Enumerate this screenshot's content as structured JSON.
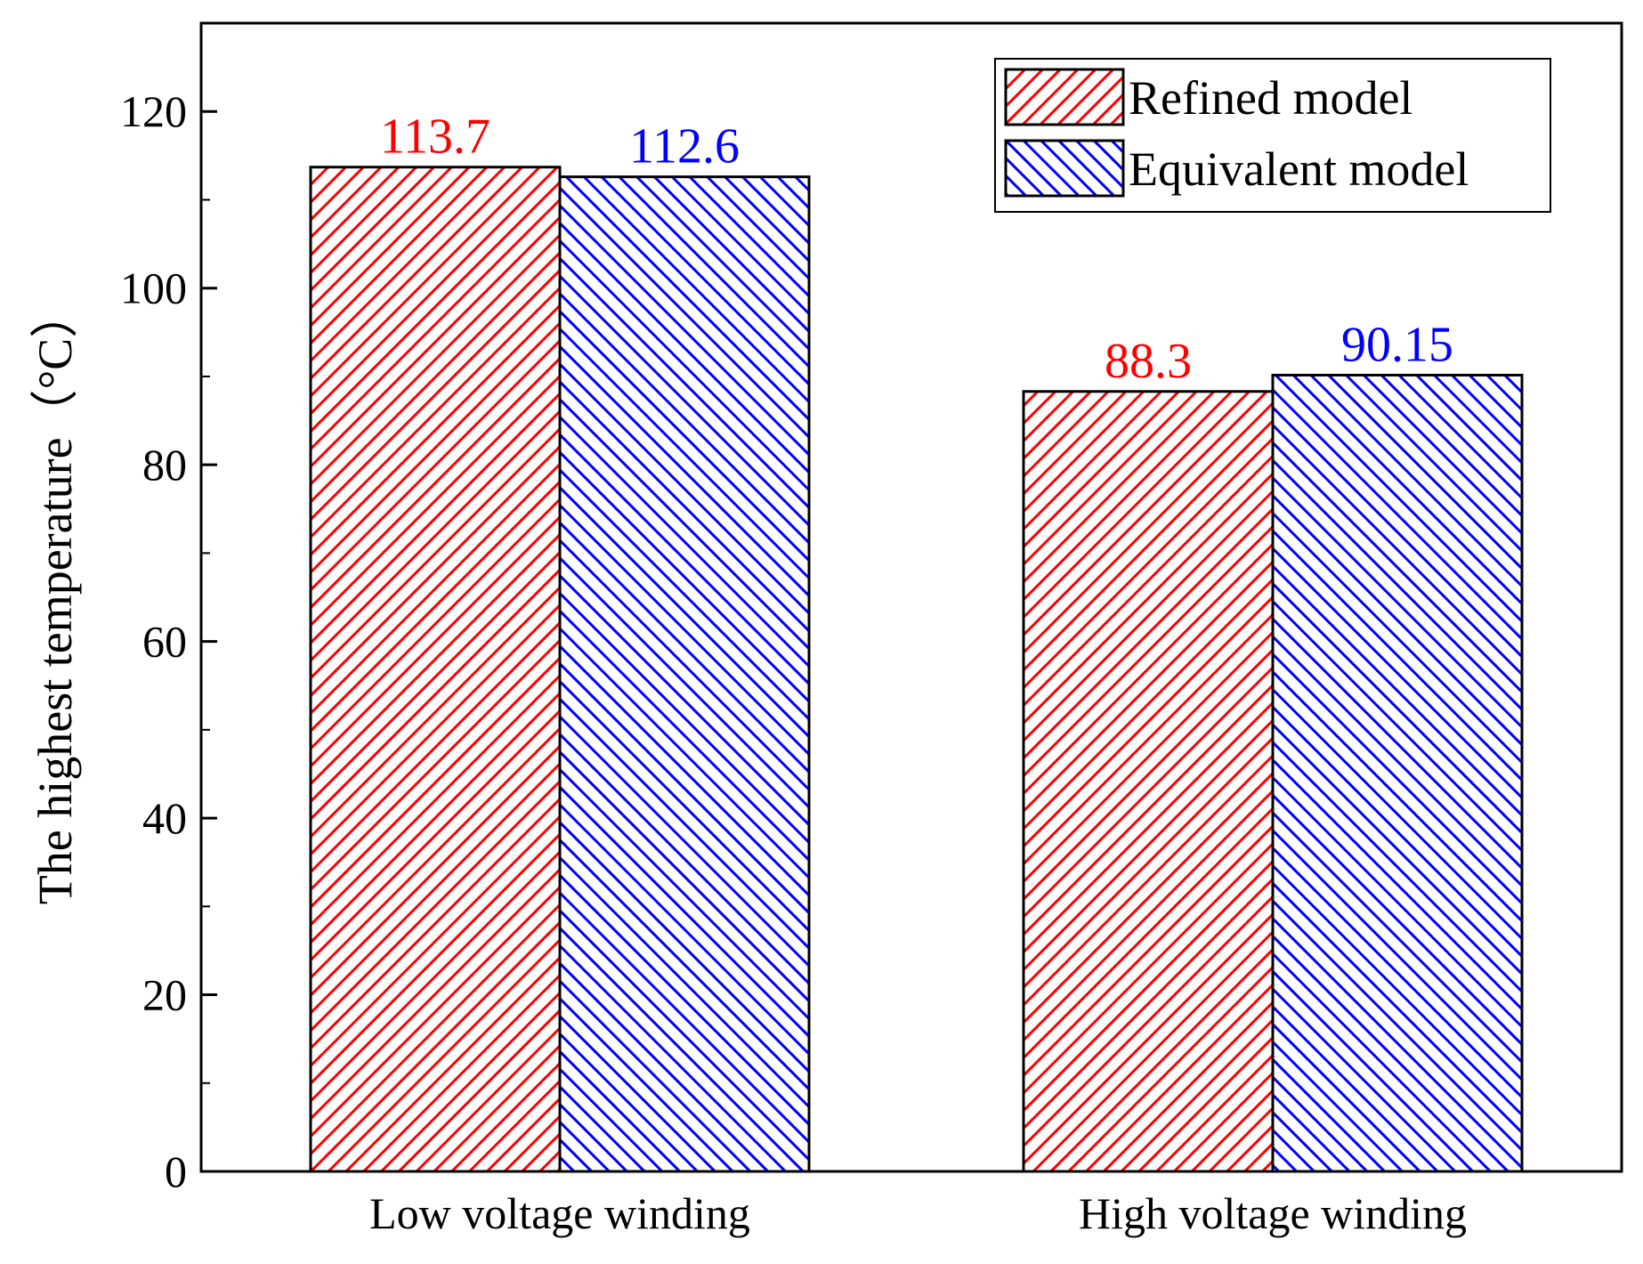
{
  "chart_data": {
    "type": "bar",
    "title": "",
    "xlabel": "",
    "ylabel": "The highest temperature（°C）",
    "categories": [
      "Low voltage winding",
      "High voltage winding"
    ],
    "series": [
      {
        "name": "Refined model",
        "values": [
          113.7,
          88.3
        ],
        "value_labels": [
          "113.7",
          "88.3"
        ],
        "color": "#ff0000",
        "hatch": "forward-diagonal"
      },
      {
        "name": "Equivalent model",
        "values": [
          112.6,
          90.15
        ],
        "value_labels": [
          "112.6",
          "90.15"
        ],
        "color": "#0000ff",
        "hatch": "back-diagonal"
      }
    ],
    "ylim": [
      0,
      130
    ],
    "yticks": [
      0,
      20,
      40,
      60,
      80,
      100,
      120
    ],
    "ytick_labels": [
      "0",
      "20",
      "40",
      "60",
      "80",
      "100",
      "120"
    ],
    "grid": false,
    "legend": "top-right"
  }
}
